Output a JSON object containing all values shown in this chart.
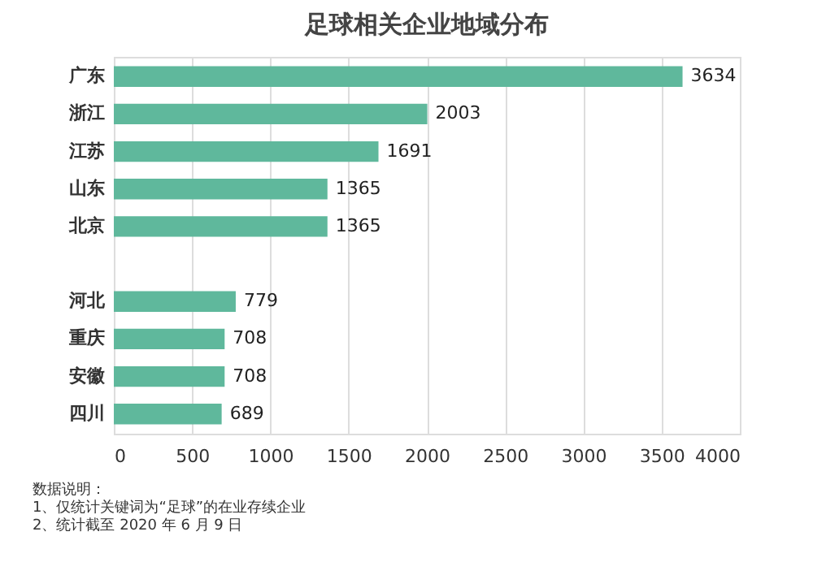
{
  "chart_data": {
    "type": "bar",
    "orientation": "horizontal",
    "title": "足球相关企业地域分布",
    "categories": [
      "广东",
      "浙江",
      "江苏",
      "山东",
      "北京",
      null,
      "河北",
      "重庆",
      "安徽",
      "四川"
    ],
    "values": [
      3634,
      2003,
      1691,
      1365,
      1365,
      null,
      779,
      708,
      708,
      689
    ],
    "color": "#5fb89c",
    "xlim": [
      0,
      4000
    ],
    "xticks": [
      0,
      500,
      1000,
      1500,
      2000,
      2500,
      3000,
      3500,
      4000
    ],
    "grid": "x",
    "data_labels": true,
    "annotations": [
      "数据说明：",
      "1、仅统计关键词为“足球”的在业存续企业",
      "2、统计截至 2020 年 6 月 9 日"
    ]
  }
}
